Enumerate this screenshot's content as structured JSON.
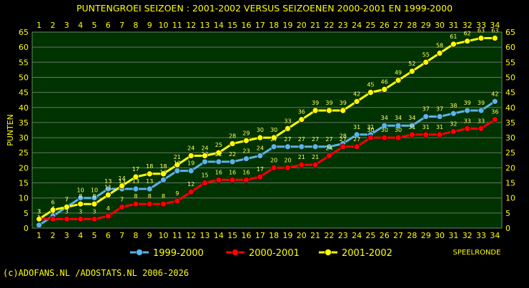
{
  "chart_data": {
    "type": "line",
    "title": "PUNTENGROEI  SEIZOEN : 2001-2002 VERSUS SEIZOENEN 2000-2001 EN 1999-2000",
    "ylabel": "PUNTEN",
    "xlabel": "SPEELRONDE",
    "ylim": [
      0,
      65
    ],
    "y_ticks": [
      0,
      5,
      10,
      15,
      20,
      25,
      30,
      35,
      40,
      45,
      50,
      55,
      60,
      65
    ],
    "x": [
      1,
      2,
      3,
      4,
      5,
      6,
      7,
      8,
      9,
      10,
      11,
      12,
      13,
      14,
      15,
      16,
      17,
      18,
      19,
      20,
      21,
      22,
      23,
      24,
      25,
      26,
      27,
      28,
      29,
      30,
      31,
      32,
      33,
      34
    ],
    "grid": true,
    "legend_position": "bottom-left",
    "series": [
      {
        "name": "1999-2000",
        "color": "#5ab4e6",
        "values": [
          1,
          4,
          7,
          10,
          10,
          13,
          13,
          13,
          13,
          16,
          19,
          19,
          22,
          22,
          22,
          23,
          24,
          27,
          27,
          27,
          27,
          27,
          28,
          31,
          31,
          34,
          34,
          34,
          37,
          37,
          38,
          39,
          39,
          42
        ]
      },
      {
        "name": "2000-2001",
        "color": "#ff0000",
        "values": [
          3,
          3,
          3,
          3,
          3,
          4,
          7,
          8,
          8,
          8,
          9,
          12,
          15,
          16,
          16,
          16,
          17,
          20,
          20,
          21,
          21,
          24,
          27,
          27,
          30,
          30,
          30,
          31,
          31,
          31,
          32,
          33,
          33,
          36
        ]
      },
      {
        "name": "2001-2002",
        "color": "#ffff00",
        "values": [
          3,
          6,
          7,
          8,
          8,
          11,
          14,
          17,
          18,
          18,
          21,
          24,
          24,
          25,
          28,
          29,
          30,
          30,
          33,
          36,
          39,
          39,
          39,
          42,
          45,
          46,
          49,
          52,
          55,
          58,
          61,
          62,
          63,
          63
        ]
      }
    ],
    "label_series": [
      2,
      1,
      0
    ]
  },
  "footer": "(c)ADOFANS.NL /ADOSTATS.NL 2006-2026"
}
